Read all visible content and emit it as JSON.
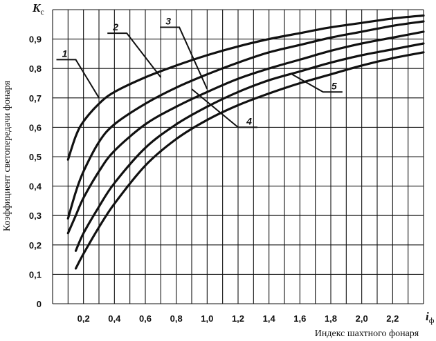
{
  "chart_data": {
    "type": "line",
    "ylabel": "Коэффициент светопередачи фонаря",
    "xlabel": "Индекс шахтного фонаря",
    "y_symbol": "K",
    "y_symbol_sub": "с",
    "x_symbol": "i",
    "x_symbol_sub": "ф",
    "xlim": [
      0,
      2.4
    ],
    "ylim": [
      0,
      1.0
    ],
    "x_ticks": [
      {
        "value": 0.2,
        "label": "0,2"
      },
      {
        "value": 0.4,
        "label": "0,4"
      },
      {
        "value": 0.6,
        "label": "0,6"
      },
      {
        "value": 0.8,
        "label": "0,8"
      },
      {
        "value": 1.0,
        "label": "1,0"
      },
      {
        "value": 1.2,
        "label": "1,2"
      },
      {
        "value": 1.4,
        "label": "1,4"
      },
      {
        "value": 1.6,
        "label": "1,6"
      },
      {
        "value": 1.8,
        "label": "1,8"
      },
      {
        "value": 2.0,
        "label": "2,0"
      },
      {
        "value": 2.2,
        "label": "2,2"
      }
    ],
    "y_ticks": [
      {
        "value": 0,
        "label": "0"
      },
      {
        "value": 0.1,
        "label": "0,1"
      },
      {
        "value": 0.2,
        "label": "0,2"
      },
      {
        "value": 0.3,
        "label": "0,3"
      },
      {
        "value": 0.4,
        "label": "0,4"
      },
      {
        "value": 0.5,
        "label": "0,5"
      },
      {
        "value": 0.6,
        "label": "0,6"
      },
      {
        "value": 0.7,
        "label": "0,7"
      },
      {
        "value": 0.8,
        "label": "0,8"
      },
      {
        "value": 0.9,
        "label": "0,9"
      }
    ],
    "grid": true,
    "series": [
      {
        "name": "1",
        "x": [
          0.1,
          0.15,
          0.2,
          0.3,
          0.4,
          0.6,
          0.8,
          1.0,
          1.2,
          1.4,
          1.6,
          1.8,
          2.0,
          2.2,
          2.4
        ],
        "y": [
          0.49,
          0.57,
          0.62,
          0.68,
          0.72,
          0.77,
          0.81,
          0.845,
          0.875,
          0.9,
          0.92,
          0.94,
          0.955,
          0.97,
          0.98
        ]
      },
      {
        "name": "2",
        "x": [
          0.1,
          0.15,
          0.2,
          0.3,
          0.4,
          0.6,
          0.8,
          1.0,
          1.2,
          1.4,
          1.6,
          1.8,
          2.0,
          2.2,
          2.4
        ],
        "y": [
          0.29,
          0.38,
          0.45,
          0.55,
          0.61,
          0.68,
          0.735,
          0.78,
          0.82,
          0.855,
          0.88,
          0.905,
          0.925,
          0.945,
          0.96
        ]
      },
      {
        "name": "3",
        "x": [
          0.1,
          0.15,
          0.2,
          0.3,
          0.4,
          0.6,
          0.8,
          1.0,
          1.2,
          1.4,
          1.6,
          1.8,
          2.0,
          2.2,
          2.4
        ],
        "y": [
          0.24,
          0.3,
          0.36,
          0.45,
          0.52,
          0.61,
          0.67,
          0.72,
          0.765,
          0.8,
          0.83,
          0.86,
          0.885,
          0.905,
          0.925
        ]
      },
      {
        "name": "4",
        "x": [
          0.15,
          0.2,
          0.3,
          0.4,
          0.6,
          0.8,
          1.0,
          1.2,
          1.4,
          1.6,
          1.8,
          2.0,
          2.2,
          2.4
        ],
        "y": [
          0.18,
          0.24,
          0.33,
          0.41,
          0.53,
          0.61,
          0.67,
          0.72,
          0.76,
          0.79,
          0.82,
          0.845,
          0.865,
          0.885
        ]
      },
      {
        "name": "5",
        "x": [
          0.15,
          0.2,
          0.3,
          0.4,
          0.6,
          0.8,
          1.0,
          1.2,
          1.4,
          1.6,
          1.8,
          2.0,
          2.2,
          2.4
        ],
        "y": [
          0.12,
          0.17,
          0.26,
          0.34,
          0.47,
          0.56,
          0.625,
          0.675,
          0.715,
          0.75,
          0.78,
          0.81,
          0.835,
          0.855
        ]
      }
    ],
    "curve_labels": [
      {
        "label": "1",
        "point": [
          0.3,
          0.7
        ],
        "text_at": [
          0.15,
          0.83
        ]
      },
      {
        "label": "2",
        "point": [
          0.7,
          0.77
        ],
        "text_at": [
          0.48,
          0.92
        ]
      },
      {
        "label": "3",
        "point": [
          1.0,
          0.73
        ],
        "text_at": [
          0.82,
          0.94
        ]
      },
      {
        "label": "4",
        "point": [
          0.9,
          0.73
        ],
        "text_at": [
          1.2,
          0.6
        ]
      },
      {
        "label": "5",
        "point": [
          1.55,
          0.78
        ],
        "text_at": [
          1.75,
          0.72
        ]
      }
    ]
  }
}
